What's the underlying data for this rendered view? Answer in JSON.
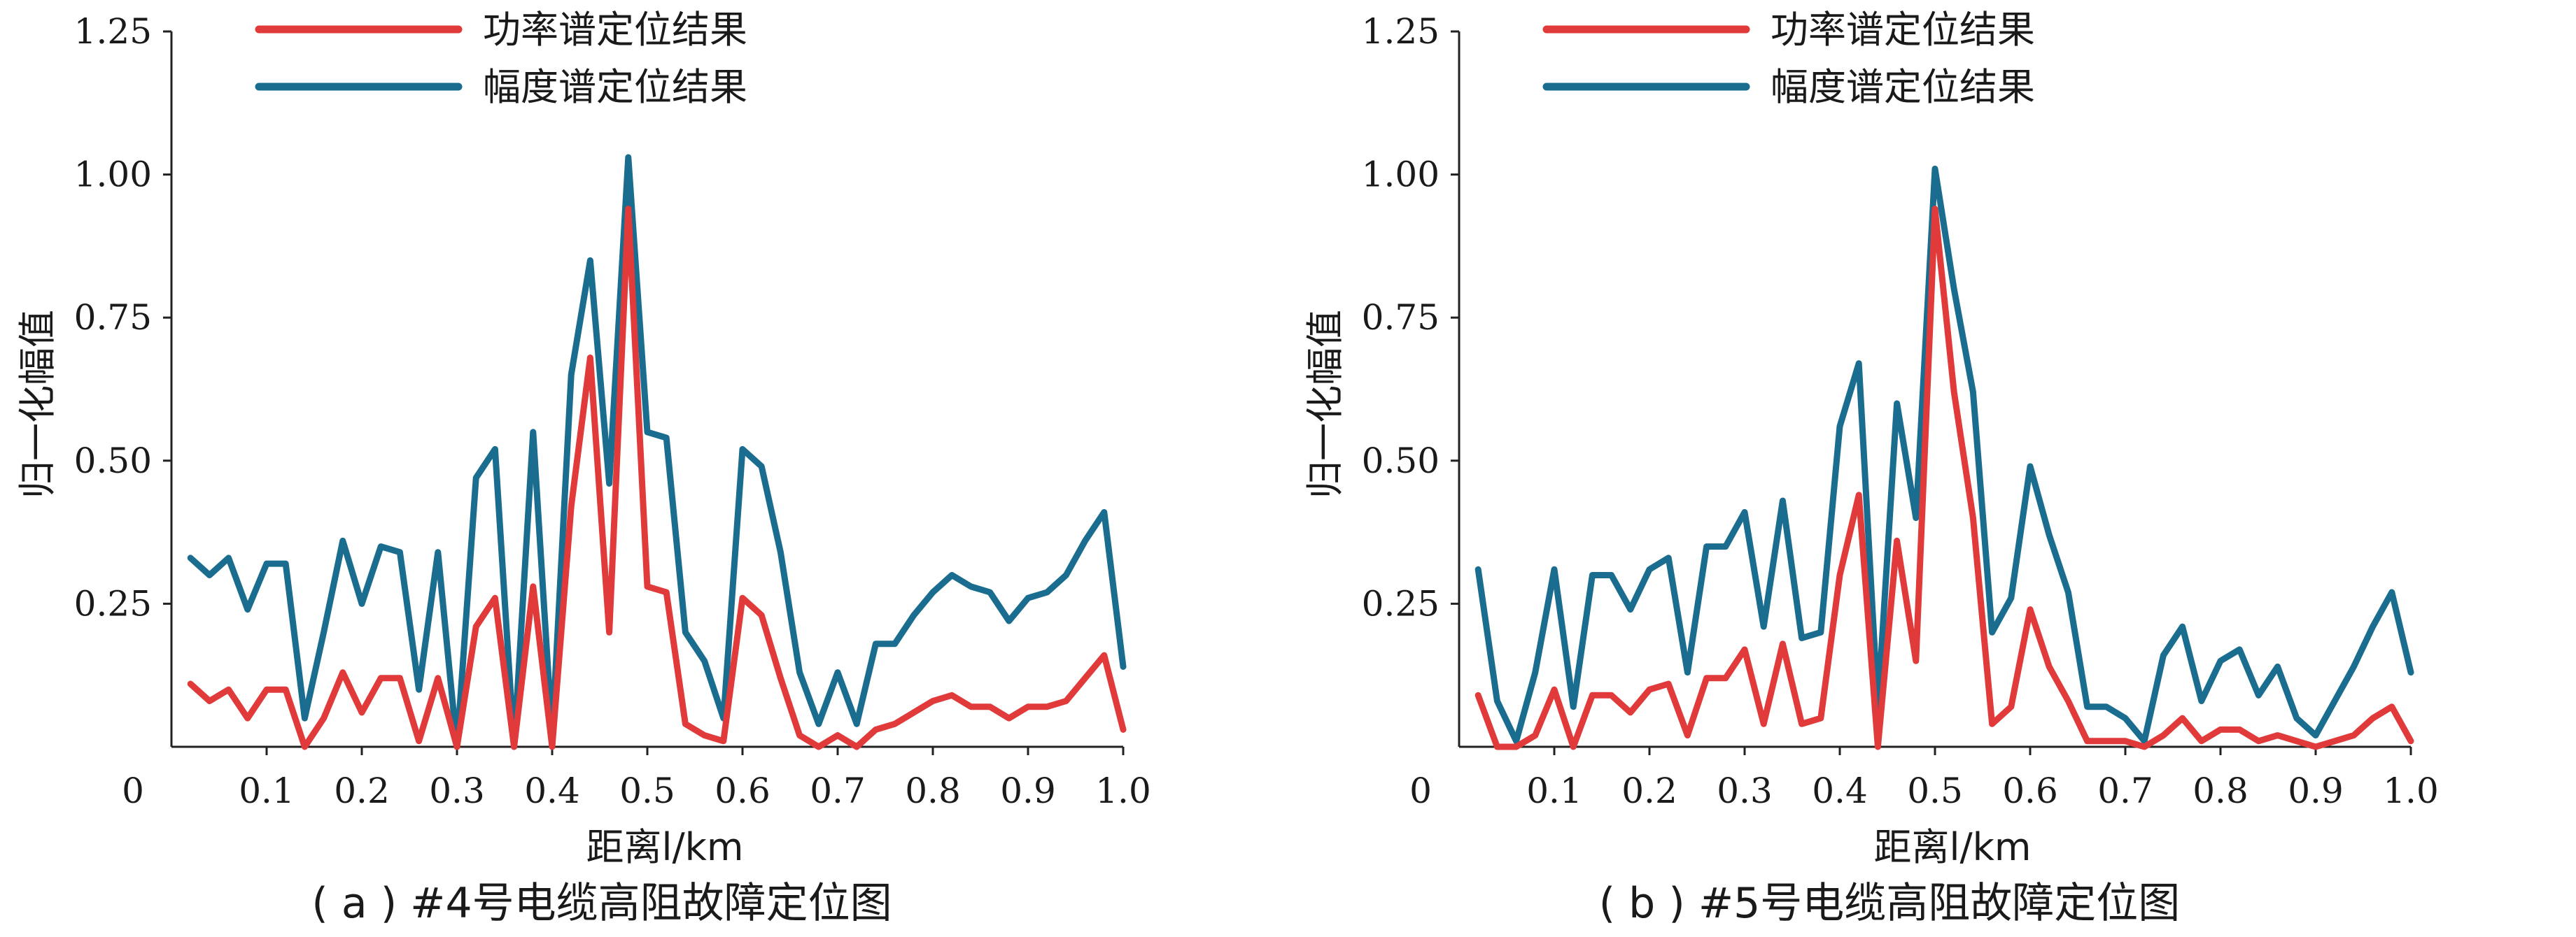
{
  "chart_data": [
    {
      "type": "line",
      "caption": "( a ) #4号电缆高阻故障定位图",
      "xlabel": "距离l/km",
      "ylabel": "归一化幅值",
      "xlim": [
        0,
        1.0
      ],
      "ylim": [
        0,
        1.25
      ],
      "xticks": [
        "0",
        "0.1",
        "0.2",
        "0.3",
        "0.4",
        "0.5",
        "0.6",
        "0.7",
        "0.8",
        "0.9",
        "1.0"
      ],
      "yticks": [
        "0.25",
        "0.50",
        "0.75",
        "1.00",
        "1.25"
      ],
      "legend_position": "top-left",
      "series": [
        {
          "name": "功率谱定位结果",
          "color": "#e03a3a",
          "x": [
            0.02,
            0.04,
            0.06,
            0.08,
            0.1,
            0.12,
            0.14,
            0.16,
            0.18,
            0.2,
            0.22,
            0.24,
            0.26,
            0.28,
            0.3,
            0.32,
            0.34,
            0.36,
            0.38,
            0.4,
            0.42,
            0.44,
            0.46,
            0.48,
            0.5,
            0.52,
            0.54,
            0.56,
            0.58,
            0.6,
            0.62,
            0.64,
            0.66,
            0.68,
            0.7,
            0.72,
            0.74,
            0.76,
            0.78,
            0.8,
            0.82,
            0.84,
            0.86,
            0.88,
            0.9,
            0.92,
            0.94,
            0.96,
            0.98,
            1.0
          ],
          "y": [
            0.11,
            0.08,
            0.1,
            0.05,
            0.1,
            0.1,
            0.0,
            0.05,
            0.13,
            0.06,
            0.12,
            0.12,
            0.01,
            0.12,
            0.0,
            0.21,
            0.26,
            0.0,
            0.28,
            0.0,
            0.42,
            0.68,
            0.2,
            0.94,
            0.28,
            0.27,
            0.04,
            0.02,
            0.01,
            0.26,
            0.23,
            0.12,
            0.02,
            0.0,
            0.02,
            0.0,
            0.03,
            0.04,
            0.06,
            0.08,
            0.09,
            0.07,
            0.07,
            0.05,
            0.07,
            0.07,
            0.08,
            0.12,
            0.16,
            0.03
          ]
        },
        {
          "name": "幅度谱定位结果",
          "color": "#1b6d8f",
          "x": [
            0.02,
            0.04,
            0.06,
            0.08,
            0.1,
            0.12,
            0.14,
            0.16,
            0.18,
            0.2,
            0.22,
            0.24,
            0.26,
            0.28,
            0.3,
            0.32,
            0.34,
            0.36,
            0.38,
            0.4,
            0.42,
            0.44,
            0.46,
            0.48,
            0.5,
            0.52,
            0.54,
            0.56,
            0.58,
            0.6,
            0.62,
            0.64,
            0.66,
            0.68,
            0.7,
            0.72,
            0.74,
            0.76,
            0.78,
            0.8,
            0.82,
            0.84,
            0.86,
            0.88,
            0.9,
            0.92,
            0.94,
            0.96,
            0.98,
            1.0
          ],
          "y": [
            0.33,
            0.3,
            0.33,
            0.24,
            0.32,
            0.32,
            0.05,
            0.2,
            0.36,
            0.25,
            0.35,
            0.34,
            0.1,
            0.34,
            0.0,
            0.47,
            0.52,
            0.0,
            0.55,
            0.02,
            0.65,
            0.85,
            0.46,
            1.03,
            0.55,
            0.54,
            0.2,
            0.15,
            0.05,
            0.52,
            0.49,
            0.34,
            0.13,
            0.04,
            0.13,
            0.04,
            0.18,
            0.18,
            0.23,
            0.27,
            0.3,
            0.28,
            0.27,
            0.22,
            0.26,
            0.27,
            0.3,
            0.36,
            0.41,
            0.14
          ]
        }
      ]
    },
    {
      "type": "line",
      "caption": "( b ) #5号电缆高阻故障定位图",
      "xlabel": "距离l/km",
      "ylabel": "归一化幅值",
      "xlim": [
        0,
        1.0
      ],
      "ylim": [
        0,
        1.25
      ],
      "xticks": [
        "0",
        "0.1",
        "0.2",
        "0.3",
        "0.4",
        "0.5",
        "0.6",
        "0.7",
        "0.8",
        "0.9",
        "1.0"
      ],
      "yticks": [
        "0.25",
        "0.50",
        "0.75",
        "1.00",
        "1.25"
      ],
      "legend_position": "top-left",
      "series": [
        {
          "name": "功率谱定位结果",
          "color": "#e03a3a",
          "x": [
            0.02,
            0.04,
            0.06,
            0.08,
            0.1,
            0.12,
            0.14,
            0.16,
            0.18,
            0.2,
            0.22,
            0.24,
            0.26,
            0.28,
            0.3,
            0.32,
            0.34,
            0.36,
            0.38,
            0.4,
            0.42,
            0.44,
            0.46,
            0.48,
            0.5,
            0.52,
            0.54,
            0.56,
            0.58,
            0.6,
            0.62,
            0.64,
            0.66,
            0.68,
            0.7,
            0.72,
            0.74,
            0.76,
            0.78,
            0.8,
            0.82,
            0.84,
            0.86,
            0.88,
            0.9,
            0.92,
            0.94,
            0.96,
            0.98,
            1.0
          ],
          "y": [
            0.09,
            0.0,
            0.0,
            0.02,
            0.1,
            0.0,
            0.09,
            0.09,
            0.06,
            0.1,
            0.11,
            0.02,
            0.12,
            0.12,
            0.17,
            0.04,
            0.18,
            0.04,
            0.05,
            0.3,
            0.44,
            0.0,
            0.36,
            0.15,
            0.94,
            0.62,
            0.4,
            0.04,
            0.07,
            0.24,
            0.14,
            0.08,
            0.01,
            0.01,
            0.01,
            0.0,
            0.02,
            0.05,
            0.01,
            0.03,
            0.03,
            0.01,
            0.02,
            0.01,
            0.0,
            0.01,
            0.02,
            0.05,
            0.07,
            0.01
          ]
        },
        {
          "name": "幅度谱定位结果",
          "color": "#1b6d8f",
          "x": [
            0.02,
            0.04,
            0.06,
            0.08,
            0.1,
            0.12,
            0.14,
            0.16,
            0.18,
            0.2,
            0.22,
            0.24,
            0.26,
            0.28,
            0.3,
            0.32,
            0.34,
            0.36,
            0.38,
            0.4,
            0.42,
            0.44,
            0.46,
            0.48,
            0.5,
            0.52,
            0.54,
            0.56,
            0.58,
            0.6,
            0.62,
            0.64,
            0.66,
            0.68,
            0.7,
            0.72,
            0.74,
            0.76,
            0.78,
            0.8,
            0.82,
            0.84,
            0.86,
            0.88,
            0.9,
            0.92,
            0.94,
            0.96,
            0.98,
            1.0
          ],
          "y": [
            0.31,
            0.08,
            0.01,
            0.13,
            0.31,
            0.07,
            0.3,
            0.3,
            0.24,
            0.31,
            0.33,
            0.13,
            0.35,
            0.35,
            0.41,
            0.21,
            0.43,
            0.19,
            0.2,
            0.56,
            0.67,
            0.07,
            0.6,
            0.4,
            1.01,
            0.8,
            0.62,
            0.2,
            0.26,
            0.49,
            0.37,
            0.27,
            0.07,
            0.07,
            0.05,
            0.01,
            0.16,
            0.21,
            0.08,
            0.15,
            0.17,
            0.09,
            0.14,
            0.05,
            0.02,
            0.08,
            0.14,
            0.21,
            0.27,
            0.13
          ]
        }
      ]
    }
  ]
}
